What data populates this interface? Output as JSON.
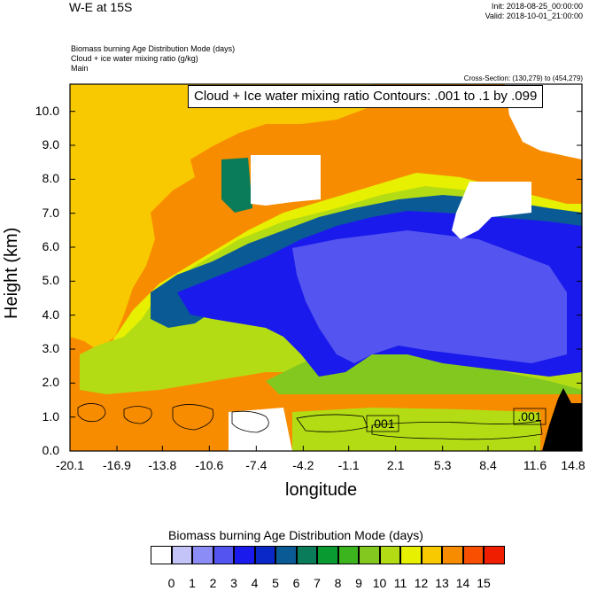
{
  "header": {
    "title": "W-E at 15S",
    "init": "Init: 2018-08-25_00:00:00",
    "valid": "Valid: 2018-10-01_21:00:00",
    "lines": [
      "Biomass burning Age Distribution Mode   (days)",
      "Cloud + ice water mixing ratio   (g/kg)",
      "Main"
    ],
    "cross_section": "Cross-Section: (130,279) to (454,279)"
  },
  "contour_label": "Cloud + Ice water mixing ratio Contours: .001 to .1 by .099",
  "contour_tags": [
    ".001",
    ".001"
  ],
  "chart_data": {
    "type": "heatmap",
    "xlabel": "longitude",
    "ylabel": "Height (km)",
    "x_ticks": [
      "-20.1",
      "-16.9",
      "-13.8",
      "-10.6",
      "-7.4",
      "-4.2",
      "-1.1",
      "2.1",
      "5.3",
      "8.4",
      "11.6",
      "14.8"
    ],
    "y_ticks": [
      "0.0",
      "1.0",
      "2.0",
      "3.0",
      "4.0",
      "5.0",
      "6.0",
      "7.0",
      "8.0",
      "9.0",
      "10.0"
    ],
    "xlim": [
      -20.1,
      14.8
    ],
    "ylim": [
      0,
      10.8
    ],
    "colorbar": {
      "title": "Biomass burning Age Distribution Mode  (days)",
      "labels": [
        "0",
        "1",
        "2",
        "3",
        "4",
        "5",
        "6",
        "7",
        "8",
        "9",
        "10",
        "11",
        "12",
        "13",
        "14",
        "15"
      ],
      "colors": [
        "#ffffff",
        "#c4c4f8",
        "#8c8cf6",
        "#5454f0",
        "#1a1aec",
        "#0a28c8",
        "#0a5a96",
        "#0a7c5a",
        "#0a9a32",
        "#3cb41e",
        "#82c81e",
        "#b4dc14",
        "#e6f000",
        "#f8c800",
        "#f88c00",
        "#f85000",
        "#f01e00"
      ]
    }
  }
}
